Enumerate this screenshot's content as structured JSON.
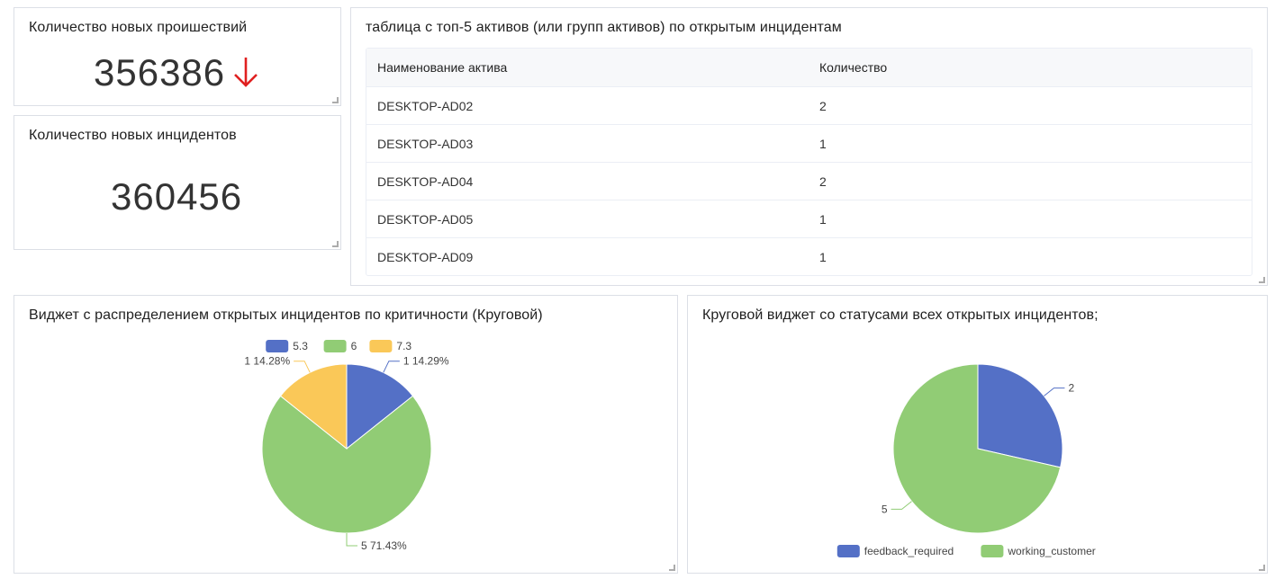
{
  "colors": {
    "blue": "#5470c6",
    "green": "#91cc75",
    "yellow": "#fac858",
    "arrow": "#e02020"
  },
  "widget_incidents_new": {
    "title": "Количество новых проишествий",
    "value": "356386",
    "trend_icon": "arrow-down-icon"
  },
  "widget_new_incidents": {
    "title": "Количество новых инцидентов",
    "value": "360456"
  },
  "top_assets": {
    "title": "таблица с топ-5 активов (или групп активов) по открытым инцидентам",
    "columns": [
      "Наименование актива",
      "Количество"
    ],
    "rows": [
      [
        "DESKTOP-AD02",
        "2"
      ],
      [
        "DESKTOP-AD03",
        "1"
      ],
      [
        "DESKTOP-AD04",
        "2"
      ],
      [
        "DESKTOP-AD05",
        "1"
      ],
      [
        "DESKTOP-AD09",
        "1"
      ]
    ]
  },
  "chart_data": [
    {
      "type": "pie",
      "title": "Виджет с распределением открытых инцидентов по критичности (Круговой)",
      "legend_position": "top",
      "slices": [
        {
          "name": "5.3",
          "value": 1,
          "label": "1 14.29%",
          "color": "#5470c6"
        },
        {
          "name": "6",
          "value": 5,
          "label": "5 71.43%",
          "color": "#91cc75"
        },
        {
          "name": "7.3",
          "value": 1,
          "label": "1 14.28%",
          "color": "#fac858"
        }
      ]
    },
    {
      "type": "pie",
      "title": "Круговой виджет со статусами всех открытых инцидентов;",
      "legend_position": "bottom",
      "slices": [
        {
          "name": "feedback_required",
          "value": 2,
          "label": "2",
          "color": "#5470c6"
        },
        {
          "name": "working_customer",
          "value": 5,
          "label": "5",
          "color": "#91cc75"
        }
      ]
    }
  ]
}
